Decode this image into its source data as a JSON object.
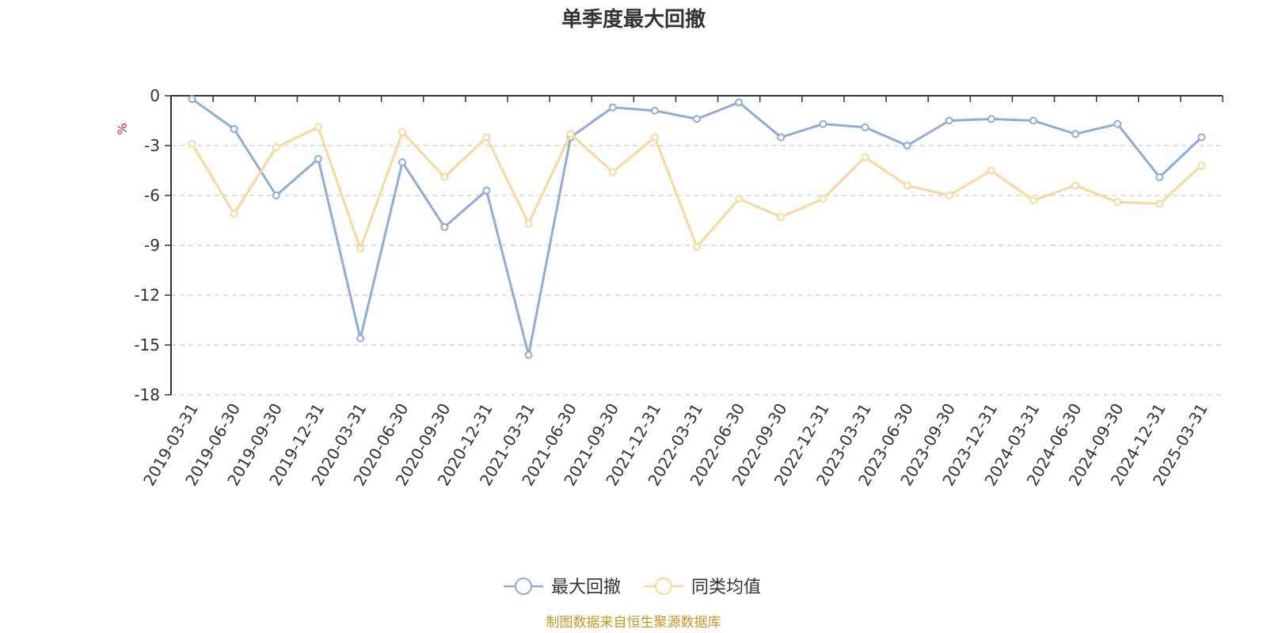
{
  "chart_data": {
    "type": "line",
    "title": "单季度最大回撤",
    "ylabel": "%",
    "ylim": [
      -18,
      0
    ],
    "yticks": [
      0,
      -3,
      -6,
      -9,
      -12,
      -15,
      -18
    ],
    "grid": true,
    "legend_position": "bottom",
    "categories": [
      "2019-03-31",
      "2019-06-30",
      "2019-09-30",
      "2019-12-31",
      "2020-03-31",
      "2020-06-30",
      "2020-09-30",
      "2020-12-31",
      "2021-03-31",
      "2021-06-30",
      "2021-09-30",
      "2021-12-31",
      "2022-03-31",
      "2022-06-30",
      "2022-09-30",
      "2022-12-31",
      "2023-03-31",
      "2023-06-30",
      "2023-09-30",
      "2023-12-31",
      "2024-03-31",
      "2024-06-30",
      "2024-09-30",
      "2024-12-31",
      "2025-03-31"
    ],
    "series": [
      {
        "name": "最大回撤",
        "color": "#8eacd9",
        "values": [
          -0.2,
          -2.0,
          -6.0,
          -3.8,
          -14.6,
          -4.0,
          -7.9,
          -5.7,
          -15.6,
          -2.5,
          -0.7,
          -0.9,
          -1.4,
          -0.4,
          -2.5,
          -1.7,
          -1.9,
          -3.0,
          -1.5,
          -1.4,
          -1.5,
          -2.3,
          -1.7,
          -4.9,
          -2.5
        ]
      },
      {
        "name": "同类均值",
        "color": "#f9d898",
        "values": [
          -2.9,
          -7.1,
          -3.1,
          -1.9,
          -9.2,
          -2.2,
          -4.9,
          -2.5,
          -7.7,
          -2.3,
          -4.6,
          -2.5,
          -9.1,
          -6.2,
          -7.3,
          -6.2,
          -3.7,
          -5.4,
          -6.0,
          -4.5,
          -6.3,
          -5.4,
          -6.4,
          -6.5,
          -4.2
        ]
      }
    ]
  },
  "footer": {
    "source": "制图数据来自恒生聚源数据库"
  }
}
